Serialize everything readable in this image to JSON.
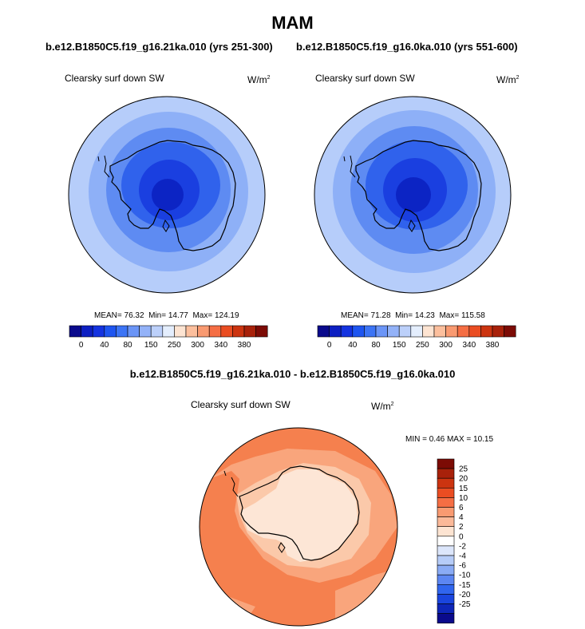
{
  "title": "MAM",
  "panels": [
    {
      "case": "b.e12.B1850C5.f19_g16.21ka.010 (yrs 251-300)",
      "variable": "Clearsky surf down SW",
      "units": "W/m",
      "units_exp": "2",
      "stats": {
        "mean_label": "MEAN=",
        "mean": "76.32",
        "min_label": "Min=",
        "min": "14.77",
        "max_label": "Max=",
        "max": "124.19"
      }
    },
    {
      "case": "b.e12.B1850C5.f19_g16.0ka.010 (yrs 551-600)",
      "variable": "Clearsky surf down SW",
      "units": "W/m",
      "units_exp": "2",
      "stats": {
        "mean_label": "MEAN=",
        "mean": "71.28",
        "min_label": "Min=",
        "min": "14.23",
        "max_label": "Max=",
        "max": "115.58"
      }
    }
  ],
  "abs_colorbar": {
    "colors": [
      "#0a0a8c",
      "#0d1fc2",
      "#1433e0",
      "#1e55f0",
      "#3c74f5",
      "#6b95f7",
      "#93b2f8",
      "#bcd0fa",
      "#e4eefd",
      "#fde4d2",
      "#fcbf9d",
      "#f99a71",
      "#f56e44",
      "#ea4d22",
      "#cc3410",
      "#a8210a",
      "#7c0b05"
    ],
    "tick_labels": [
      "0",
      "40",
      "80",
      "150",
      "250",
      "300",
      "340",
      "380"
    ]
  },
  "difference": {
    "title": "b.e12.B1850C5.f19_g16.21ka.010 - b.e12.B1850C5.f19_g16.0ka.010",
    "variable": "Clearsky surf down SW",
    "units": "W/m",
    "units_exp": "2",
    "min_max": "MIN =   0.46 MAX =  10.15",
    "colorbar": {
      "colors": [
        "#7c0b05",
        "#a8210a",
        "#cc3410",
        "#ea4d22",
        "#f56e44",
        "#f99a71",
        "#fbb999",
        "#fde4d2",
        "#ffffff",
        "#dce6fb",
        "#b6ccf8",
        "#8aabf5",
        "#5c86f2",
        "#3065ee",
        "#1a45de",
        "#0e26b8",
        "#0a0a8c"
      ],
      "tick_labels": [
        "25",
        "20",
        "15",
        "10",
        "6",
        "4",
        "2",
        "0",
        "-2",
        "-4",
        "-6",
        "-10",
        "-15",
        "-20",
        "-25"
      ]
    }
  },
  "map_colors": {
    "blue_outer": "#b6cdfa",
    "blue_2": "#8eb0f7",
    "blue_3": "#5e8bf2",
    "blue_4": "#3062ec",
    "blue_5": "#1a3fe0",
    "blue_core": "#0c24c4",
    "diff_outer": "#f5804e",
    "diff_mid": "#f9a57c",
    "diff_inner": "#fbc9aa",
    "diff_core": "#fde6d6"
  }
}
